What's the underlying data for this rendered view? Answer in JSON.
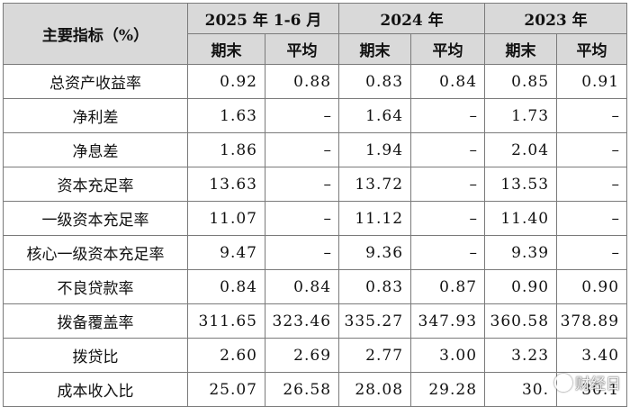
{
  "header": {
    "metric_label": "主要指标（%）",
    "periods": [
      "2025 年 1-6 月",
      "2024 年",
      "2023 年"
    ],
    "sub_end": "期末",
    "sub_avg": "平均"
  },
  "rows": [
    {
      "label": "总资产收益率",
      "v": [
        "0.92",
        "0.88",
        "0.83",
        "0.84",
        "0.85",
        "0.91"
      ]
    },
    {
      "label": "净利差",
      "v": [
        "1.63",
        "–",
        "1.64",
        "–",
        "1.73",
        "–"
      ]
    },
    {
      "label": "净息差",
      "v": [
        "1.86",
        "–",
        "1.94",
        "–",
        "2.04",
        "–"
      ]
    },
    {
      "label": "资本充足率",
      "v": [
        "13.63",
        "–",
        "13.72",
        "–",
        "13.53",
        "–"
      ]
    },
    {
      "label": "一级资本充足率",
      "v": [
        "11.07",
        "–",
        "11.12",
        "–",
        "11.40",
        "–"
      ]
    },
    {
      "label": "核心一级资本充足率",
      "v": [
        "9.47",
        "–",
        "9.36",
        "–",
        "9.39",
        "–"
      ]
    },
    {
      "label": "不良贷款率",
      "v": [
        "0.84",
        "0.84",
        "0.83",
        "0.87",
        "0.90",
        "0.90"
      ]
    },
    {
      "label": "拨备覆盖率",
      "v": [
        "311.65",
        "323.46",
        "335.27",
        "347.93",
        "360.58",
        "378.89"
      ]
    },
    {
      "label": "拨贷比",
      "v": [
        "2.60",
        "2.69",
        "2.77",
        "3.00",
        "3.23",
        "3.40"
      ]
    },
    {
      "label": "成本收入比",
      "v": [
        "25.07",
        "26.58",
        "28.08",
        "29.28",
        "30.",
        "30.1"
      ]
    }
  ],
  "watermark": "财经日"
}
